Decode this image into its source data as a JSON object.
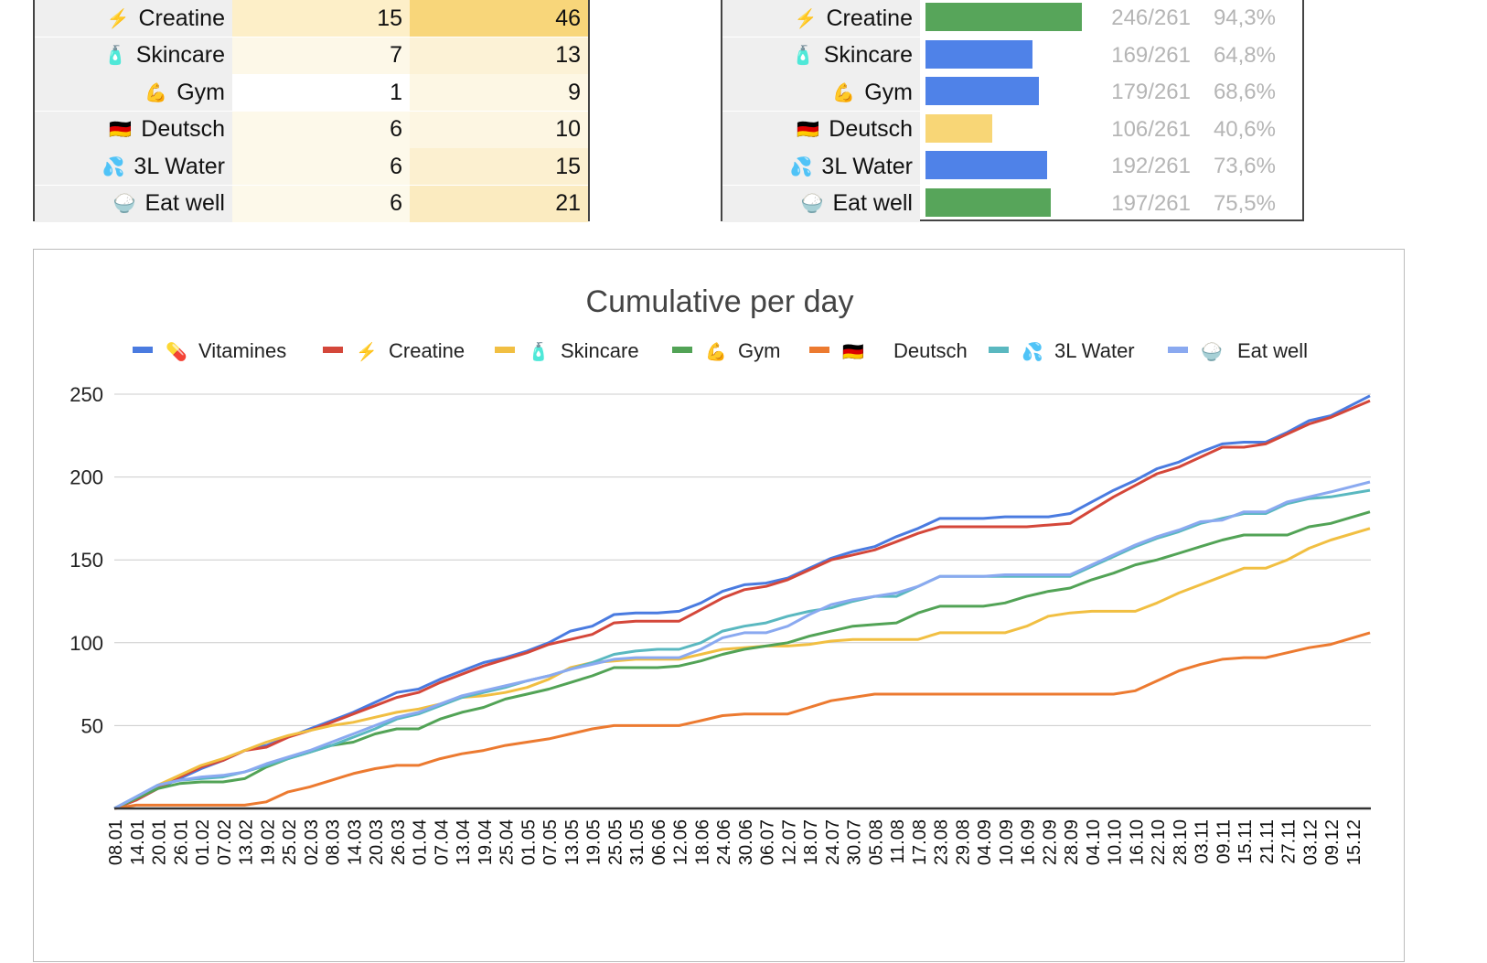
{
  "left_table": {
    "rows": [
      {
        "emoji": "⚡",
        "name": "Creatine",
        "a": "15",
        "b": "46",
        "a_color": "#fdefc8",
        "b_color": "#f8d67a"
      },
      {
        "emoji": "🧴",
        "name": "Skincare",
        "a": "7",
        "b": "13",
        "a_color": "#fdf8e8",
        "b_color": "#fcf2d6"
      },
      {
        "emoji": "💪",
        "name": "Gym",
        "a": "1",
        "b": "9",
        "a_color": "#ffffff",
        "b_color": "#fdf7e4"
      },
      {
        "emoji": "🇩🇪",
        "name": "Deutsch",
        "a": "6",
        "b": "10",
        "a_color": "#fdf9ea",
        "b_color": "#fdf6e2"
      },
      {
        "emoji": "💦",
        "name": "3L Water",
        "a": "6",
        "b": "15",
        "a_color": "#fdf9ea",
        "b_color": "#fcf0d0"
      },
      {
        "emoji": "🍚",
        "name": "Eat well",
        "a": "6",
        "b": "21",
        "a_color": "#fdf9ea",
        "b_color": "#fbebc0"
      }
    ]
  },
  "right_table": {
    "rows": [
      {
        "emoji": "⚡",
        "name": "Creatine",
        "count": "246/261",
        "percent": "94,3%",
        "fraction": 0.943,
        "bar_color": "#57a55a"
      },
      {
        "emoji": "🧴",
        "name": "Skincare",
        "count": "169/261",
        "percent": "64,8%",
        "fraction": 0.648,
        "bar_color": "#4f82e8"
      },
      {
        "emoji": "💪",
        "name": "Gym",
        "count": "179/261",
        "percent": "68,6%",
        "fraction": 0.686,
        "bar_color": "#4f82e8"
      },
      {
        "emoji": "🇩🇪",
        "name": "Deutsch",
        "count": "106/261",
        "percent": "40,6%",
        "fraction": 0.406,
        "bar_color": "#f8d676"
      },
      {
        "emoji": "💦",
        "name": "3L Water",
        "count": "192/261",
        "percent": "73,6%",
        "fraction": 0.736,
        "bar_color": "#4f82e8"
      },
      {
        "emoji": "🍚",
        "name": "Eat well",
        "count": "197/261",
        "percent": "75,5%",
        "fraction": 0.755,
        "bar_color": "#57a55a"
      }
    ]
  },
  "chart_data": {
    "type": "line",
    "title": "Cumulative per day",
    "legend_position": "top",
    "grid": true,
    "ylim": [
      0,
      250
    ],
    "yticks": [
      "50",
      "100",
      "150",
      "200",
      "250"
    ],
    "x": [
      "08.01",
      "14.01",
      "20.01",
      "26.01",
      "01.02",
      "07.02",
      "13.02",
      "19.02",
      "25.02",
      "02.03",
      "08.03",
      "14.03",
      "20.03",
      "26.03",
      "01.04",
      "07.04",
      "13.04",
      "19.04",
      "25.04",
      "01.05",
      "07.05",
      "13.05",
      "19.05",
      "25.05",
      "31.05",
      "06.06",
      "12.06",
      "18.06",
      "24.06",
      "30.06",
      "06.07",
      "12.07",
      "18.07",
      "24.07",
      "30.07",
      "05.08",
      "11.08",
      "17.08",
      "23.08",
      "29.08",
      "04.09",
      "10.09",
      "16.09",
      "22.09",
      "28.09",
      "04.10",
      "10.10",
      "16.10",
      "22.10",
      "28.10",
      "03.11",
      "09.11",
      "15.11",
      "21.11",
      "27.11",
      "03.12",
      "09.12",
      "15.12"
    ],
    "series": [
      {
        "name": "Vitamines",
        "emoji": "💊",
        "color": "#4a7be0",
        "values": [
          0,
          5,
          12,
          18,
          24,
          29,
          35,
          38,
          43,
          48,
          53,
          58,
          64,
          70,
          72,
          78,
          83,
          88,
          91,
          95,
          100,
          107,
          110,
          117,
          118,
          118,
          119,
          124,
          131,
          135,
          136,
          139,
          145,
          151,
          155,
          158,
          164,
          169,
          175,
          175,
          175,
          176,
          176,
          176,
          178,
          185,
          192,
          198,
          205,
          209,
          215,
          220,
          221,
          221,
          227,
          234,
          237,
          249
        ]
      },
      {
        "name": "Creatine",
        "emoji": "⚡",
        "color": "#d4473a",
        "values": [
          0,
          5,
          12,
          19,
          25,
          29,
          35,
          37,
          43,
          47,
          52,
          57,
          62,
          67,
          70,
          76,
          81,
          86,
          90,
          94,
          99,
          102,
          105,
          112,
          113,
          113,
          113,
          120,
          127,
          132,
          134,
          138,
          144,
          150,
          153,
          156,
          161,
          166,
          170,
          170,
          170,
          170,
          170,
          171,
          172,
          180,
          188,
          195,
          202,
          206,
          212,
          218,
          218,
          220,
          226,
          232,
          236,
          246
        ]
      },
      {
        "name": "Skincare",
        "emoji": "🧴",
        "color": "#f1bf42",
        "values": [
          0,
          6,
          14,
          20,
          26,
          30,
          35,
          40,
          44,
          47,
          50,
          52,
          55,
          58,
          60,
          63,
          67,
          68,
          70,
          73,
          78,
          85,
          88,
          89,
          90,
          90,
          90,
          93,
          96,
          97,
          98,
          98,
          99,
          101,
          102,
          102,
          102,
          102,
          106,
          106,
          106,
          106,
          110,
          116,
          118,
          119,
          119,
          119,
          124,
          130,
          135,
          140,
          145,
          145,
          150,
          157,
          162,
          169
        ]
      },
      {
        "name": "Gym",
        "emoji": "💪",
        "color": "#52a356",
        "values": [
          0,
          6,
          12,
          15,
          16,
          16,
          18,
          25,
          30,
          34,
          38,
          40,
          45,
          48,
          48,
          54,
          58,
          61,
          66,
          69,
          72,
          76,
          80,
          85,
          85,
          85,
          86,
          89,
          93,
          96,
          98,
          100,
          104,
          107,
          110,
          111,
          112,
          118,
          122,
          122,
          122,
          124,
          128,
          131,
          133,
          138,
          142,
          147,
          150,
          154,
          158,
          162,
          165,
          165,
          165,
          170,
          172,
          179
        ]
      },
      {
        "name": "Deutsch",
        "emoji": "🇩🇪",
        "color": "#ec7a30",
        "values": [
          0,
          2,
          2,
          2,
          2,
          2,
          2,
          4,
          10,
          13,
          17,
          21,
          24,
          26,
          26,
          30,
          33,
          35,
          38,
          40,
          42,
          45,
          48,
          50,
          50,
          50,
          50,
          53,
          56,
          57,
          57,
          57,
          61,
          65,
          67,
          69,
          69,
          69,
          69,
          69,
          69,
          69,
          69,
          69,
          69,
          69,
          69,
          71,
          77,
          83,
          87,
          90,
          91,
          91,
          94,
          97,
          99,
          106
        ]
      },
      {
        "name": "3L Water",
        "emoji": "💦",
        "color": "#5ab8c0",
        "values": [
          0,
          7,
          14,
          17,
          18,
          19,
          22,
          26,
          30,
          34,
          38,
          43,
          48,
          54,
          57,
          62,
          67,
          70,
          73,
          77,
          80,
          84,
          88,
          93,
          95,
          96,
          96,
          100,
          107,
          110,
          112,
          116,
          119,
          121,
          125,
          128,
          128,
          134,
          140,
          140,
          140,
          140,
          140,
          140,
          140,
          146,
          152,
          158,
          163,
          167,
          172,
          175,
          178,
          178,
          184,
          187,
          188,
          192
        ]
      },
      {
        "name": "Eat well",
        "emoji": "🍚",
        "color": "#8aa9f0",
        "values": [
          0,
          7,
          14,
          17,
          19,
          20,
          22,
          27,
          31,
          35,
          40,
          45,
          50,
          55,
          58,
          63,
          68,
          71,
          74,
          77,
          80,
          84,
          87,
          90,
          91,
          91,
          91,
          96,
          103,
          106,
          106,
          110,
          117,
          123,
          126,
          128,
          130,
          134,
          140,
          140,
          140,
          141,
          141,
          141,
          141,
          147,
          153,
          159,
          164,
          168,
          173,
          174,
          179,
          179,
          185,
          188,
          191,
          197
        ]
      }
    ]
  }
}
